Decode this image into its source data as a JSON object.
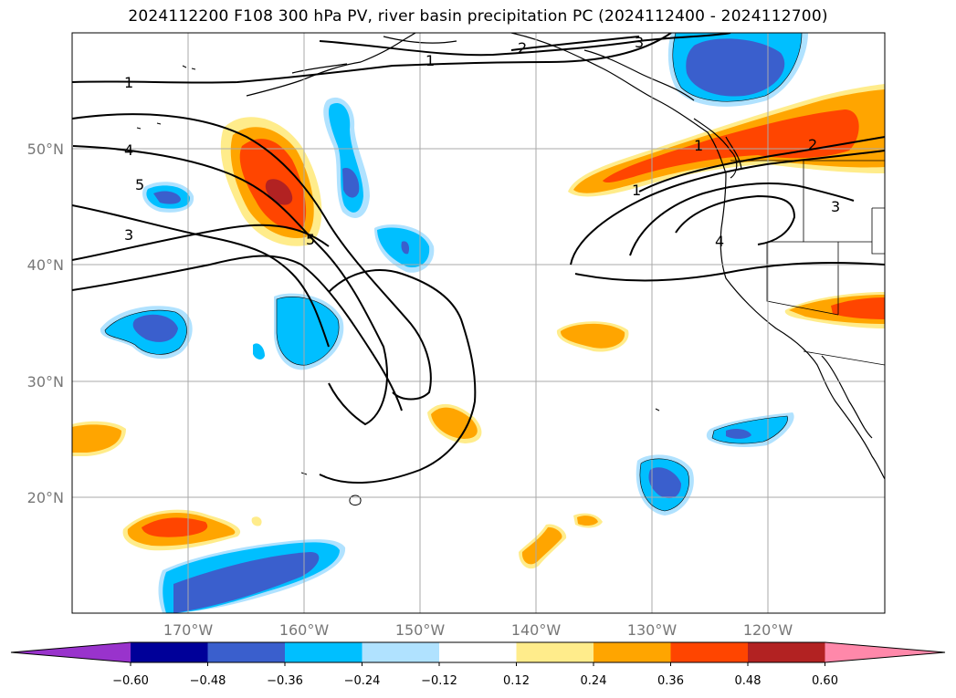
{
  "title": "2024112200 F108 300 hPa PV, river basin precipitation PC (2024112400 - 2024112700)",
  "map": {
    "lat_labels": [
      "50°N",
      "40°N",
      "30°N",
      "20°N"
    ],
    "lon_labels": [
      "170°W",
      "160°W",
      "150°W",
      "140°W",
      "130°W",
      "120°W"
    ],
    "pv_contour_labels": [
      "1",
      "1",
      "2",
      "3",
      "1",
      "4",
      "5",
      "3",
      "5",
      "1",
      "2",
      "3",
      "4"
    ]
  },
  "colorbar": {
    "ticks": [
      "−0.60",
      "−0.48",
      "−0.36",
      "−0.24",
      "−0.12",
      "0.12",
      "0.24",
      "0.36",
      "0.48",
      "0.60"
    ],
    "colors": [
      "#9933cc",
      "#000099",
      "#3a5fcd",
      "#00bfff",
      "#b0e2ff",
      "#ffffff",
      "#ffec8b",
      "#ffa500",
      "#ff4500",
      "#b22222",
      "#ff88aa"
    ]
  },
  "colors": {
    "neg_strong": "#3a5fcd",
    "neg_mid": "#00bfff",
    "neg_weak": "#b0e2ff",
    "pos_weak": "#ffec8b",
    "pos_mid": "#ffa500",
    "pos_strong": "#ff4500",
    "pos_max": "#b22222"
  }
}
